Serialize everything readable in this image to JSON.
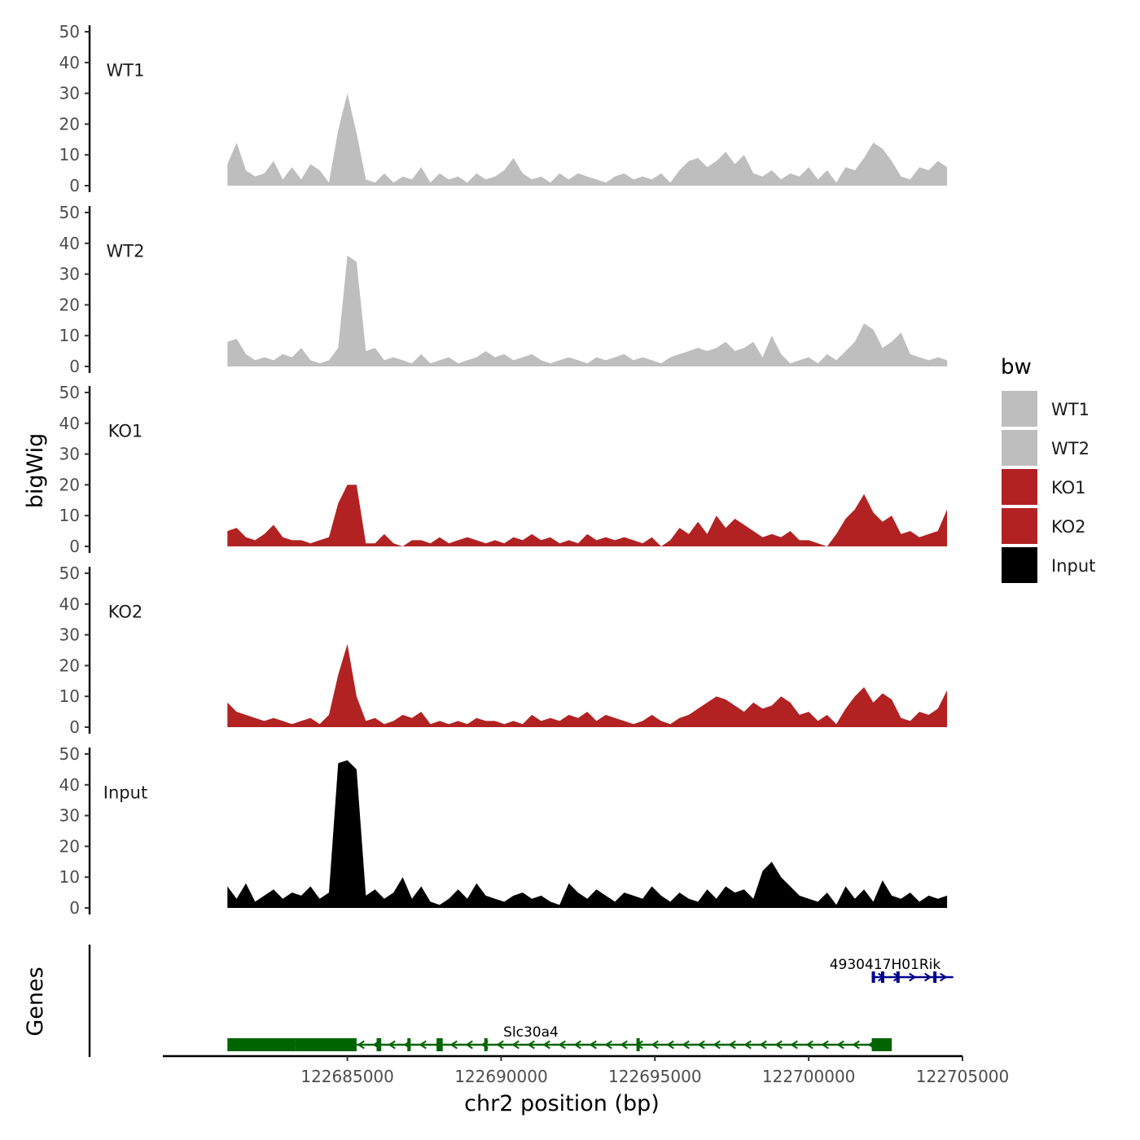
{
  "chart_data": {
    "type": "area",
    "panels": [
      {
        "name": "WT1",
        "color": "#bebebe",
        "ylim": [
          0,
          50
        ],
        "yticks": [
          "0",
          "10",
          "20",
          "30",
          "40",
          "50"
        ],
        "x": [
          122681100,
          122681400,
          122681700,
          122682000,
          122682300,
          122682600,
          122682900,
          122683200,
          122683500,
          122683800,
          122684100,
          122684400,
          122684700,
          122685000,
          122685300,
          122685600,
          122685900,
          122686200,
          122686500,
          122686800,
          122687100,
          122687400,
          122687700,
          122688000,
          122688300,
          122688600,
          122688900,
          122689200,
          122689500,
          122689800,
          122690100,
          122690400,
          122690700,
          122691000,
          122691300,
          122691600,
          122691900,
          122692200,
          122692500,
          122692800,
          122693100,
          122693400,
          122693700,
          122694000,
          122694300,
          122694600,
          122694900,
          122695200,
          122695500,
          122695800,
          122696100,
          122696400,
          122696700,
          122697000,
          122697300,
          122697600,
          122697900,
          122698200,
          122698500,
          122698800,
          122699100,
          122699400,
          122699700,
          122700000,
          122700300,
          122700600,
          122700900,
          122701200,
          122701500,
          122701800,
          122702100,
          122702400,
          122702700,
          122703000,
          122703300,
          122703600,
          122703900,
          122704200,
          122704500
        ],
        "values": [
          7,
          14,
          5,
          3,
          4,
          8,
          2,
          6,
          2,
          7,
          5,
          1,
          18,
          30,
          17,
          2,
          1,
          4,
          1,
          3,
          2,
          6,
          1,
          4,
          2,
          3,
          1,
          4,
          2,
          3,
          5,
          9,
          4,
          2,
          3,
          1,
          4,
          2,
          4,
          3,
          2,
          1,
          3,
          4,
          2,
          3,
          2,
          4,
          1,
          5,
          8,
          9,
          6,
          8,
          11,
          7,
          10,
          4,
          3,
          5,
          2,
          4,
          3,
          6,
          2,
          5,
          1,
          6,
          5,
          9,
          14,
          12,
          8,
          3,
          2,
          6,
          5,
          8,
          6
        ]
      },
      {
        "name": "WT2",
        "color": "#bebebe",
        "ylim": [
          0,
          50
        ],
        "yticks": [
          "0",
          "10",
          "20",
          "30",
          "40",
          "50"
        ],
        "x": [
          122681100,
          122681400,
          122681700,
          122682000,
          122682300,
          122682600,
          122682900,
          122683200,
          122683500,
          122683800,
          122684100,
          122684400,
          122684700,
          122685000,
          122685300,
          122685600,
          122685900,
          122686200,
          122686500,
          122686800,
          122687100,
          122687400,
          122687700,
          122688000,
          122688300,
          122688600,
          122688900,
          122689200,
          122689500,
          122689800,
          122690100,
          122690400,
          122690700,
          122691000,
          122691300,
          122691600,
          122691900,
          122692200,
          122692500,
          122692800,
          122693100,
          122693400,
          122693700,
          122694000,
          122694300,
          122694600,
          122694900,
          122695200,
          122695500,
          122695800,
          122696100,
          122696400,
          122696700,
          122697000,
          122697300,
          122697600,
          122697900,
          122698200,
          122698500,
          122698800,
          122699100,
          122699400,
          122699700,
          122700000,
          122700300,
          122700600,
          122700900,
          122701200,
          122701500,
          122701800,
          122702100,
          122702400,
          122702700,
          122703000,
          122703300,
          122703600,
          122703900,
          122704200,
          122704500
        ],
        "values": [
          8,
          9,
          4,
          2,
          3,
          2,
          4,
          3,
          6,
          2,
          1,
          2,
          6,
          36,
          34,
          5,
          6,
          2,
          3,
          2,
          1,
          4,
          1,
          2,
          3,
          1,
          2,
          3,
          5,
          3,
          4,
          2,
          3,
          4,
          2,
          1,
          2,
          3,
          2,
          1,
          3,
          2,
          3,
          4,
          2,
          3,
          2,
          1,
          3,
          4,
          5,
          6,
          5,
          6,
          8,
          5,
          6,
          8,
          3,
          10,
          4,
          1,
          2,
          3,
          1,
          4,
          2,
          5,
          8,
          14,
          12,
          6,
          8,
          11,
          4,
          3,
          2,
          3,
          2
        ]
      },
      {
        "name": "KO1",
        "color": "#b22222",
        "ylim": [
          0,
          50
        ],
        "yticks": [
          "0",
          "10",
          "20",
          "30",
          "40",
          "50"
        ],
        "x": [
          122681100,
          122681400,
          122681700,
          122682000,
          122682300,
          122682600,
          122682900,
          122683200,
          122683500,
          122683800,
          122684100,
          122684400,
          122684700,
          122685000,
          122685300,
          122685600,
          122685900,
          122686200,
          122686500,
          122686800,
          122687100,
          122687400,
          122687700,
          122688000,
          122688300,
          122688600,
          122688900,
          122689200,
          122689500,
          122689800,
          122690100,
          122690400,
          122690700,
          122691000,
          122691300,
          122691600,
          122691900,
          122692200,
          122692500,
          122692800,
          122693100,
          122693400,
          122693700,
          122694000,
          122694300,
          122694600,
          122694900,
          122695200,
          122695500,
          122695800,
          122696100,
          122696400,
          122696700,
          122697000,
          122697300,
          122697600,
          122697900,
          122698200,
          122698500,
          122698800,
          122699100,
          122699400,
          122699700,
          122700000,
          122700300,
          122700600,
          122700900,
          122701200,
          122701500,
          122701800,
          122702100,
          122702400,
          122702700,
          122703000,
          122703300,
          122703600,
          122703900,
          122704200,
          122704500
        ],
        "values": [
          5,
          6,
          3,
          2,
          4,
          7,
          3,
          2,
          2,
          1,
          2,
          3,
          14,
          20,
          20,
          1,
          1,
          4,
          1,
          0,
          2,
          2,
          1,
          3,
          1,
          2,
          3,
          2,
          1,
          2,
          1,
          3,
          2,
          4,
          2,
          3,
          1,
          2,
          1,
          4,
          2,
          3,
          2,
          3,
          2,
          1,
          3,
          0,
          2,
          6,
          4,
          8,
          4,
          10,
          6,
          9,
          7,
          5,
          3,
          4,
          3,
          5,
          2,
          2,
          1,
          0,
          4,
          9,
          12,
          17,
          11,
          8,
          10,
          4,
          5,
          3,
          4,
          5,
          12
        ]
      },
      {
        "name": "KO2",
        "color": "#b22222",
        "ylim": [
          0,
          50
        ],
        "yticks": [
          "0",
          "10",
          "20",
          "30",
          "40",
          "50"
        ],
        "x": [
          122681100,
          122681400,
          122681700,
          122682000,
          122682300,
          122682600,
          122682900,
          122683200,
          122683500,
          122683800,
          122684100,
          122684400,
          122684700,
          122685000,
          122685300,
          122685600,
          122685900,
          122686200,
          122686500,
          122686800,
          122687100,
          122687400,
          122687700,
          122688000,
          122688300,
          122688600,
          122688900,
          122689200,
          122689500,
          122689800,
          122690100,
          122690400,
          122690700,
          122691000,
          122691300,
          122691600,
          122691900,
          122692200,
          122692500,
          122692800,
          122693100,
          122693400,
          122693700,
          122694000,
          122694300,
          122694600,
          122694900,
          122695200,
          122695500,
          122695800,
          122696100,
          122696400,
          122696700,
          122697000,
          122697300,
          122697600,
          122697900,
          122698200,
          122698500,
          122698800,
          122699100,
          122699400,
          122699700,
          122700000,
          122700300,
          122700600,
          122700900,
          122701200,
          122701500,
          122701800,
          122702100,
          122702400,
          122702700,
          122703000,
          122703300,
          122703600,
          122703900,
          122704200,
          122704500
        ],
        "values": [
          8,
          5,
          4,
          3,
          2,
          3,
          2,
          1,
          2,
          3,
          1,
          4,
          17,
          27,
          10,
          2,
          3,
          1,
          2,
          4,
          3,
          5,
          1,
          2,
          1,
          2,
          1,
          3,
          2,
          2,
          1,
          2,
          1,
          4,
          2,
          3,
          2,
          4,
          3,
          5,
          2,
          4,
          3,
          2,
          1,
          2,
          4,
          2,
          1,
          3,
          4,
          6,
          8,
          10,
          9,
          7,
          5,
          8,
          6,
          7,
          10,
          8,
          4,
          5,
          2,
          4,
          1,
          6,
          10,
          13,
          8,
          11,
          9,
          3,
          2,
          5,
          4,
          6,
          12
        ]
      },
      {
        "name": "Input",
        "color": "#000000",
        "ylim": [
          0,
          50
        ],
        "yticks": [
          "0",
          "10",
          "20",
          "30",
          "40",
          "50"
        ],
        "x": [
          122681100,
          122681400,
          122681700,
          122682000,
          122682300,
          122682600,
          122682900,
          122683200,
          122683500,
          122683800,
          122684100,
          122684400,
          122684700,
          122685000,
          122685300,
          122685600,
          122685900,
          122686200,
          122686500,
          122686800,
          122687100,
          122687400,
          122687700,
          122688000,
          122688300,
          122688600,
          122688900,
          122689200,
          122689500,
          122689800,
          122690100,
          122690400,
          122690700,
          122691000,
          122691300,
          122691600,
          122691900,
          122692200,
          122692500,
          122692800,
          122693100,
          122693400,
          122693700,
          122694000,
          122694300,
          122694600,
          122694900,
          122695200,
          122695500,
          122695800,
          122696100,
          122696400,
          122696700,
          122697000,
          122697300,
          122697600,
          122697900,
          122698200,
          122698500,
          122698800,
          122699100,
          122699400,
          122699700,
          122700000,
          122700300,
          122700600,
          122700900,
          122701200,
          122701500,
          122701800,
          122702100,
          122702400,
          122702700,
          122703000,
          122703300,
          122703600,
          122703900,
          122704200,
          122704500
        ],
        "values": [
          7,
          3,
          8,
          2,
          4,
          6,
          3,
          5,
          4,
          7,
          3,
          5,
          47,
          48,
          45,
          4,
          6,
          3,
          5,
          10,
          3,
          7,
          2,
          1,
          3,
          6,
          3,
          8,
          4,
          3,
          2,
          4,
          5,
          3,
          4,
          2,
          1,
          8,
          5,
          3,
          6,
          4,
          2,
          5,
          4,
          3,
          7,
          4,
          2,
          5,
          3,
          2,
          6,
          3,
          7,
          5,
          6,
          3,
          12,
          15,
          10,
          7,
          4,
          3,
          2,
          5,
          1,
          7,
          3,
          6,
          2,
          9,
          4,
          3,
          5,
          2,
          4,
          3,
          4
        ]
      }
    ],
    "genes": [
      {
        "name": "Slc30a4",
        "color": "#006400",
        "strand": "-",
        "start": 122681100,
        "end": 122702700,
        "exons": [
          [
            122681100,
            122683300
          ],
          [
            122683300,
            122685300
          ],
          [
            122685950,
            122686100
          ],
          [
            122686950,
            122687050
          ],
          [
            122687900,
            122688100
          ],
          [
            122689450,
            122689550
          ],
          [
            122694400,
            122694500
          ],
          [
            122702050,
            122702700
          ]
        ]
      },
      {
        "name": "4930417H01Rik",
        "color": "#00008b",
        "strand": "+",
        "start": 122702050,
        "end": 122704700,
        "exons": [
          [
            122702050,
            122702150
          ],
          [
            122702350,
            122702450
          ],
          [
            122702850,
            122702950
          ],
          [
            122704050,
            122704150
          ]
        ]
      }
    ],
    "xlabel": "chr2 position (bp)",
    "ylabel": "bigWig",
    "genes_label": "Genes",
    "xlim": [
      122679000,
      122705000
    ],
    "xticks": [
      "122685000",
      "122690000",
      "122695000",
      "122700000",
      "122705000"
    ],
    "legend": {
      "title": "bw",
      "position": "right",
      "items": [
        {
          "label": "WT1",
          "color": "#bebebe"
        },
        {
          "label": "WT2",
          "color": "#bebebe"
        },
        {
          "label": "KO1",
          "color": "#b22222"
        },
        {
          "label": "KO2",
          "color": "#b22222"
        },
        {
          "label": "Input",
          "color": "#000000"
        }
      ]
    }
  }
}
